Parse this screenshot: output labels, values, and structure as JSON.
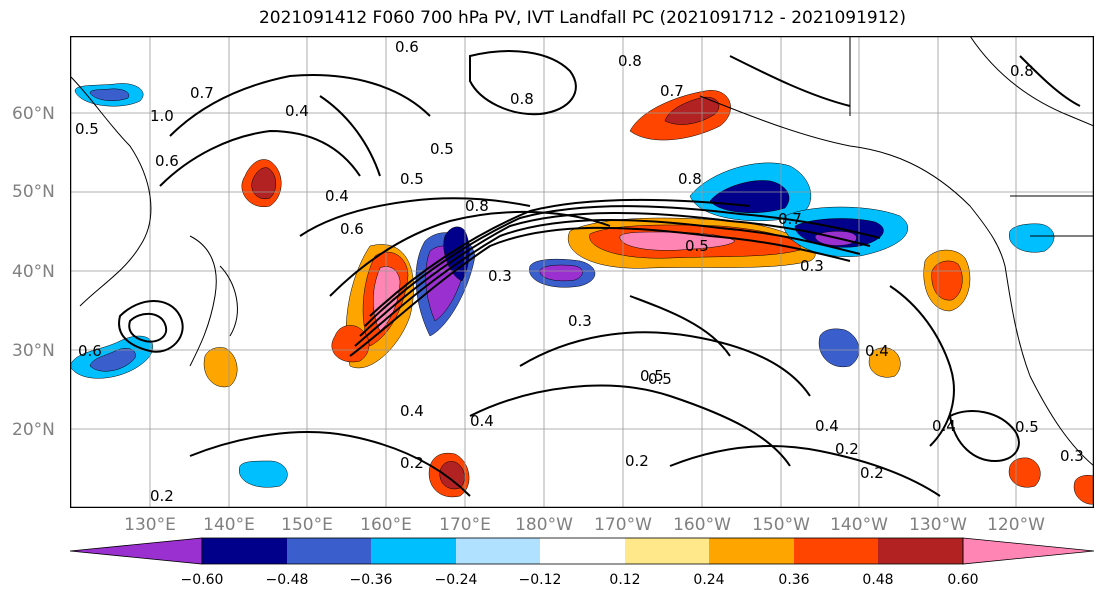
{
  "title": "2021091412 F060 700 hPa PV, IVT Landfall PC (2021091712 - 2021091912)",
  "lat_labels": [
    "60°N",
    "50°N",
    "40°N",
    "30°N",
    "20°N"
  ],
  "lon_labels": [
    "130°E",
    "140°E",
    "150°E",
    "160°E",
    "170°E",
    "180°W",
    "170°W",
    "160°W",
    "150°W",
    "140°W",
    "130°W",
    "120°W"
  ],
  "colorbar": {
    "ticks": [
      "−0.60",
      "−0.48",
      "−0.36",
      "−0.24",
      "−0.12",
      "0.12",
      "0.24",
      "0.36",
      "0.48",
      "0.60"
    ],
    "colors": [
      "#9b30d0",
      "#00008b",
      "#3a5fcd",
      "#00bfff",
      "#b0e2ff",
      "#ffffff",
      "#ffe88a",
      "#ffa500",
      "#ff4500",
      "#b22222",
      "#ff85b4"
    ]
  },
  "contour_labels": [
    "0.6",
    "0.8",
    "0.8",
    "0.7",
    "0.4",
    "0.5",
    "0.4",
    "0.5",
    "0.6",
    "0.8",
    "0.7",
    "0.4",
    "0.5",
    "0.6",
    "0.8",
    "0.5",
    "0.3",
    "0.3",
    "0.3",
    "0.4",
    "0.5",
    "0.4",
    "0.4",
    "0.2",
    "0.2",
    "0.4",
    "0.2",
    "0.2",
    "0.5",
    "0.3",
    "0.2",
    "0.8",
    "0.7",
    "1.0",
    "0.6",
    "0.5"
  ]
}
